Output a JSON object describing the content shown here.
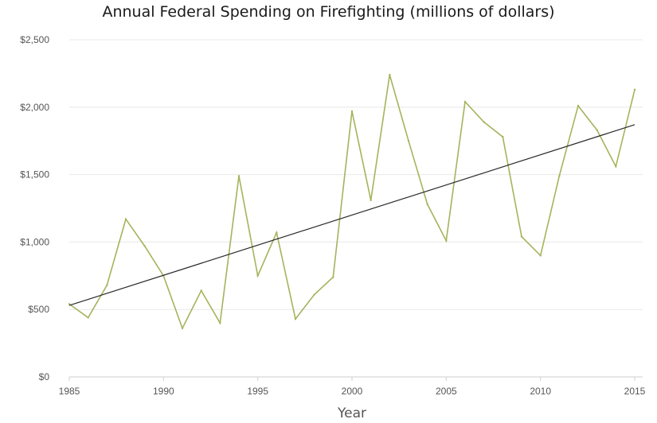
{
  "chart_data": {
    "type": "line",
    "title": "Annual Federal Spending on Firefighting (millions of dollars)",
    "xlabel": "Year",
    "ylabel": "",
    "xlim": [
      1985,
      2015
    ],
    "ylim": [
      0,
      2500
    ],
    "x_ticks": [
      1985,
      1990,
      1995,
      2000,
      2005,
      2010,
      2015
    ],
    "y_ticks": [
      {
        "value": 0,
        "label": "$0"
      },
      {
        "value": 500,
        "label": "$500"
      },
      {
        "value": 1000,
        "label": "$1,000"
      },
      {
        "value": 1500,
        "label": "$1,500"
      },
      {
        "value": 2000,
        "label": "$2,000"
      },
      {
        "value": 2500,
        "label": "$2,500"
      }
    ],
    "grid": "horizontal",
    "legend": "none",
    "series": [
      {
        "color": "#a4b45c",
        "x": [
          1985,
          1986,
          1987,
          1988,
          1989,
          1990,
          1991,
          1992,
          1993,
          1994,
          1995,
          1996,
          1997,
          1998,
          1999,
          2000,
          2001,
          2002,
          2003,
          2004,
          2005,
          2006,
          2007,
          2008,
          2009,
          2010,
          2011,
          2012,
          2013,
          2014,
          2015
        ],
        "values": [
          540,
          440,
          680,
          1170,
          970,
          750,
          360,
          640,
          400,
          1490,
          750,
          1070,
          430,
          610,
          740,
          1970,
          1310,
          2240,
          1750,
          1280,
          1010,
          2040,
          1890,
          1780,
          1040,
          900,
          1490,
          2010,
          1830,
          1560,
          2130
        ]
      },
      {
        "type": "trendline",
        "color": "#2b2b2b",
        "x": [
          1985,
          2015
        ],
        "values": [
          530,
          1870
        ]
      }
    ]
  }
}
